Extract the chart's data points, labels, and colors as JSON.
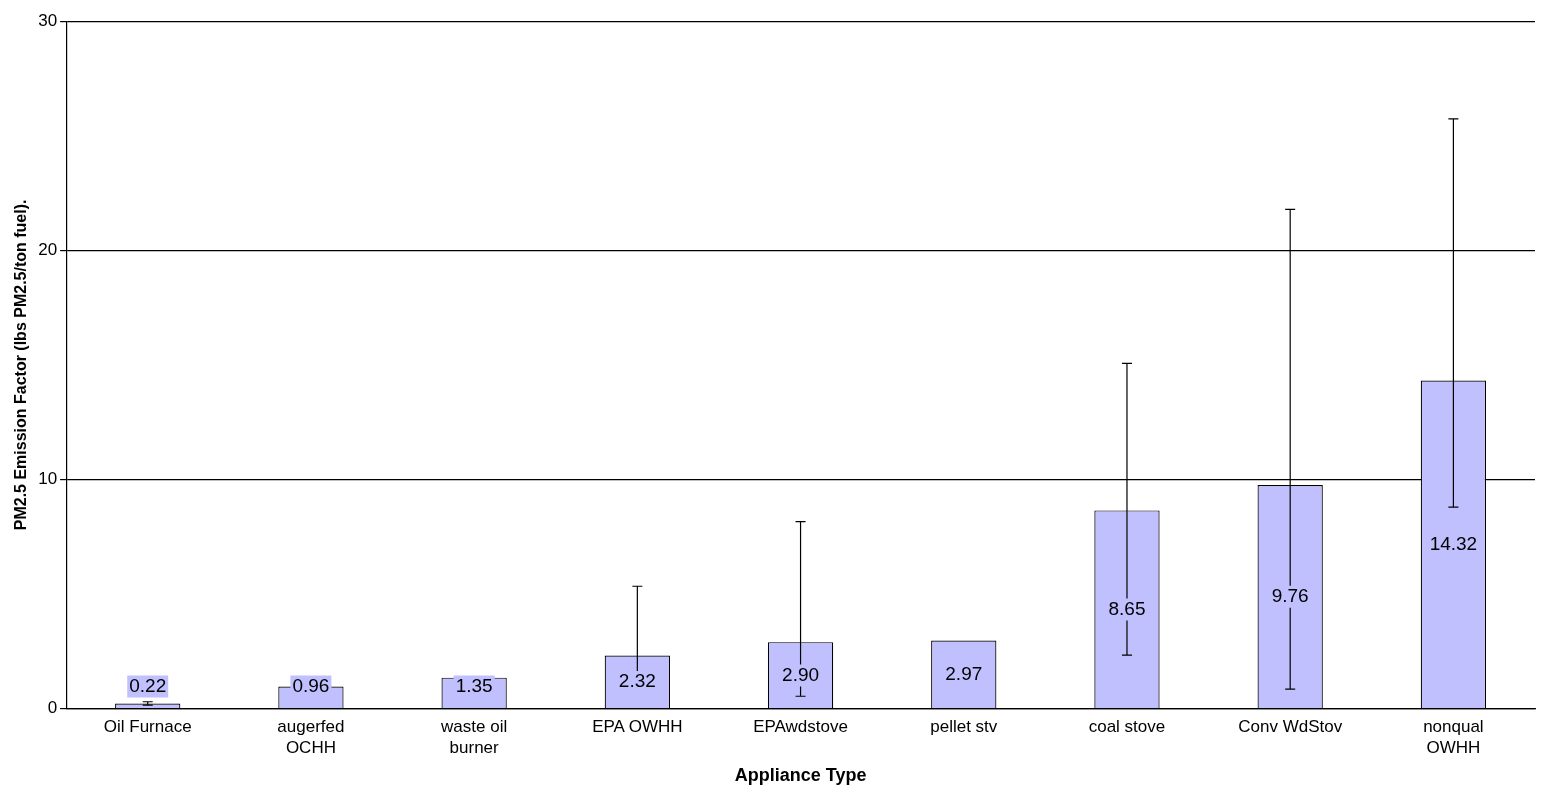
{
  "chart_data": {
    "type": "bar",
    "xlabel": "Appliance Type",
    "ylabel": "PM2.5 Emission Factor (lbs PM2.5/ton fuel).",
    "categories": [
      "Oil Furnace",
      "augerfed OCHH",
      "waste oil burner",
      "EPA OWHH",
      "EPAwdstove",
      "pellet stv",
      "coal stove",
      "Conv WdStov",
      "nonqual OWHH"
    ],
    "values": [
      0.22,
      0.96,
      1.35,
      2.32,
      2.9,
      2.97,
      8.65,
      9.76,
      14.32
    ],
    "value_labels": [
      "0.22",
      "0.96",
      "1.35",
      "2.32",
      "2.90",
      "2.97",
      "8.65",
      "9.76",
      "14.32"
    ],
    "errors": [
      [
        0.15,
        0.3
      ],
      null,
      null,
      [
        0.85,
        5.34
      ],
      [
        0.54,
        8.16
      ],
      null,
      [
        2.33,
        15.07
      ],
      [
        0.85,
        21.79
      ],
      [
        8.79,
        25.74
      ]
    ],
    "color": "#c0c0ff",
    "ylim": [
      0,
      30
    ],
    "yticks": [
      0,
      10,
      20,
      30
    ],
    "grid": "y",
    "legend": false
  }
}
